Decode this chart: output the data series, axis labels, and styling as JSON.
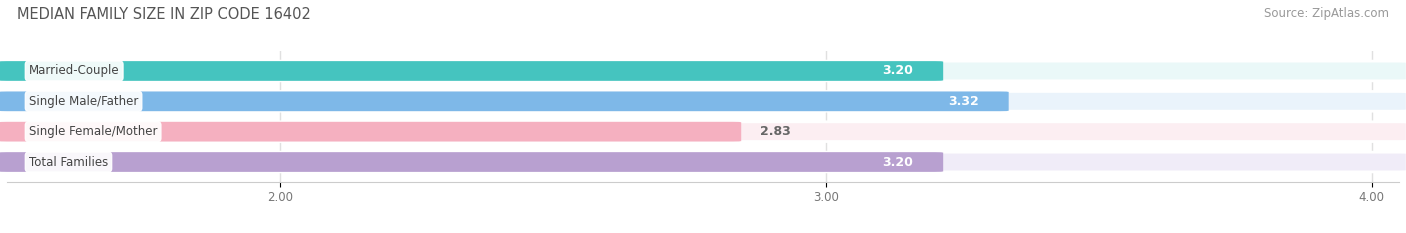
{
  "title": "MEDIAN FAMILY SIZE IN ZIP CODE 16402",
  "source": "Source: ZipAtlas.com",
  "categories": [
    "Married-Couple",
    "Single Male/Father",
    "Single Female/Mother",
    "Total Families"
  ],
  "values": [
    3.2,
    3.32,
    2.83,
    3.2
  ],
  "bar_colors": [
    "#45c4bf",
    "#7eb8e8",
    "#f5b0c0",
    "#b8a0d0"
  ],
  "bar_bg_colors": [
    "#eaf8f8",
    "#eaf3fb",
    "#fceef2",
    "#f0ecf8"
  ],
  "value_label_inside": [
    true,
    true,
    false,
    true
  ],
  "xlim_min": 1.5,
  "xlim_max": 4.05,
  "xticks": [
    2.0,
    3.0,
    4.0
  ],
  "xtick_labels": [
    "2.00",
    "3.00",
    "4.00"
  ],
  "figsize": [
    14.06,
    2.33
  ],
  "dpi": 100,
  "title_fontsize": 10.5,
  "bar_height": 0.62,
  "label_fontsize": 9,
  "category_fontsize": 8.5,
  "source_fontsize": 8.5,
  "bg_color": "#ffffff",
  "title_color": "#555555",
  "source_color": "#999999",
  "grid_color": "#e0e0e0",
  "category_label_color": "#444444",
  "value_label_inside_color": "#ffffff",
  "value_label_outside_color": "#666666"
}
